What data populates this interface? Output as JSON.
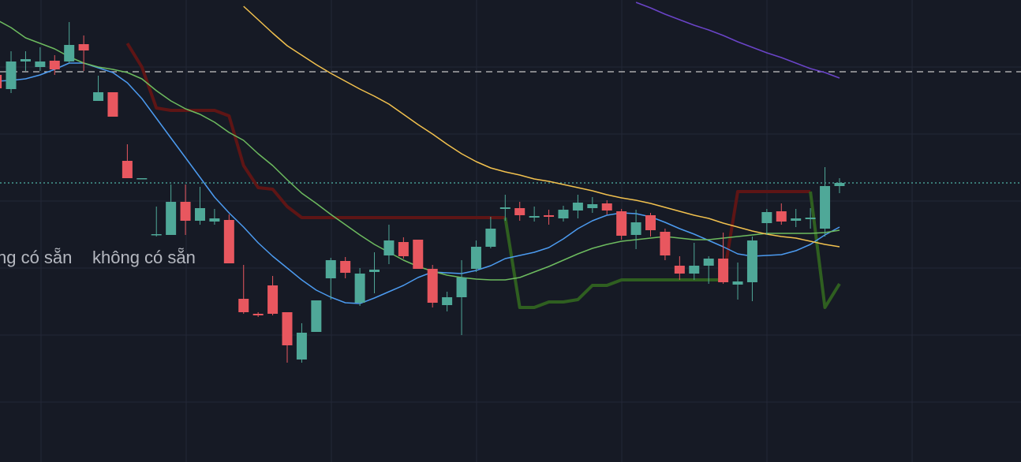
{
  "chart_data": {
    "type": "candlestick",
    "ylim": [
      0,
      586
    ],
    "up_color": "#4fa898",
    "down_color": "#e8575f",
    "open": [
      491,
      473,
      508,
      501,
      509,
      508,
      530,
      458,
      469,
      382,
      359,
      288,
      288,
      330,
      306,
      305,
      307,
      207,
      188,
      224,
      190,
      130,
      165,
      233,
      255,
      202,
      241,
      262,
      279,
      282,
      245,
      199,
      209,
      245,
      273,
      321,
      322,
      310,
      313,
      309,
      319,
      322,
      328,
      318,
      288,
      313,
      292,
      249,
      239,
      249,
      258,
      225,
      228,
      303,
      318,
      306,
      308,
      296,
      350
    ],
    "high": [
      491,
      521,
      521,
      526,
      516,
      558,
      541,
      490,
      469,
      403,
      360,
      324,
      352,
      352,
      349,
      321,
      314,
      250,
      190,
      236,
      190,
      176,
      205,
      259,
      260,
      246,
      266,
      301,
      285,
      282,
      250,
      216,
      256,
      281,
      311,
      339,
      330,
      324,
      320,
      325,
      339,
      336,
      332,
      321,
      320,
      316,
      296,
      261,
      278,
      261,
      291,
      253,
      286,
      321,
      328,
      321,
      322,
      374,
      360
    ],
    "low": [
      468,
      468,
      496,
      496,
      491,
      506,
      496,
      458,
      438,
      360,
      359,
      286,
      288,
      288,
      301,
      301,
      252,
      188,
      184,
      186,
      126,
      126,
      165,
      206,
      233,
      198,
      214,
      251,
      258,
      245,
      196,
      191,
      161,
      241,
      271,
      306,
      306,
      305,
      301,
      305,
      309,
      316,
      314,
      282,
      270,
      286,
      256,
      231,
      231,
      226,
      226,
      206,
      204,
      288,
      301,
      298,
      296,
      286,
      341
    ],
    "close": [
      474,
      508,
      511,
      508,
      498,
      529,
      522,
      469,
      438,
      360,
      360,
      289,
      330,
      306,
      322,
      309,
      252,
      190,
      186,
      188,
      148,
      164,
      205,
      256,
      240,
      239,
      244,
      281,
      261,
      245,
      202,
      209,
      234,
      273,
      296,
      323,
      313,
      312,
      311,
      320,
      329,
      327,
      319,
      287,
      304,
      294,
      262,
      239,
      249,
      258,
      228,
      229,
      281,
      317,
      305,
      309,
      310,
      350,
      354
    ],
    "lines": [
      {
        "color": "#5e1515",
        "width": 4,
        "values": [
          null,
          null,
          null,
          null,
          null,
          null,
          null,
          null,
          null,
          531,
          501,
          449,
          446,
          446,
          446,
          446,
          439,
          376,
          348,
          346,
          324,
          310,
          310,
          310,
          310,
          310,
          310,
          310,
          310,
          310,
          310,
          310,
          310,
          310,
          310,
          310,
          null,
          null,
          null,
          null,
          null,
          null,
          null,
          null,
          null,
          null,
          null,
          null,
          null,
          null,
          231,
          343,
          343,
          343,
          343,
          343,
          343,
          null,
          null
        ]
      },
      {
        "color": "#2f5f20",
        "width": 4,
        "values": [
          null,
          null,
          null,
          null,
          null,
          null,
          null,
          null,
          null,
          null,
          null,
          null,
          null,
          null,
          null,
          null,
          null,
          null,
          null,
          null,
          null,
          null,
          null,
          null,
          null,
          null,
          null,
          null,
          null,
          null,
          null,
          null,
          null,
          null,
          null,
          310,
          196,
          196,
          203,
          203,
          206,
          224,
          224,
          231,
          231,
          231,
          231,
          231,
          231,
          231,
          231,
          null,
          null,
          null,
          null,
          null,
          343,
          196,
          226
        ]
      },
      {
        "color": "#4c9bf0",
        "width": 1.5,
        "values": [
          483,
          484,
          486,
          491,
          498,
          506,
          506,
          500,
          494,
          481,
          461,
          436,
          411,
          386,
          361,
          336,
          316,
          298,
          278,
          261,
          246,
          231,
          218,
          209,
          202,
          201,
          208,
          216,
          224,
          234,
          241,
          240,
          239,
          243,
          249,
          258,
          262,
          266,
          272,
          283,
          296,
          306,
          313,
          316,
          315,
          311,
          304,
          296,
          289,
          281,
          273,
          264,
          261,
          262,
          263,
          268,
          276,
          288,
          298
        ]
      },
      {
        "color": "#6dbb5f",
        "width": 1.5,
        "values": [
          561,
          551,
          538,
          531,
          524,
          514,
          506,
          501,
          498,
          494,
          486,
          471,
          458,
          448,
          441,
          431,
          418,
          408,
          391,
          376,
          358,
          341,
          328,
          314,
          301,
          288,
          276,
          266,
          256,
          248,
          242,
          237,
          234,
          232,
          231,
          231,
          234,
          241,
          248,
          256,
          264,
          271,
          276,
          280,
          282,
          284,
          286,
          284,
          282,
          282,
          284,
          286,
          288,
          290,
          290,
          290,
          290,
          291,
          294
        ]
      },
      {
        "color": "#f2c14e",
        "width": 1.5,
        "values": [
          null,
          null,
          null,
          null,
          null,
          null,
          null,
          null,
          null,
          null,
          null,
          null,
          null,
          null,
          null,
          null,
          null,
          578,
          561,
          544,
          528,
          516,
          504,
          493,
          483,
          473,
          464,
          454,
          441,
          428,
          416,
          403,
          391,
          381,
          373,
          368,
          364,
          359,
          356,
          352,
          348,
          344,
          339,
          335,
          332,
          328,
          323,
          318,
          313,
          309,
          303,
          298,
          293,
          289,
          286,
          284,
          280,
          276,
          273
        ]
      },
      {
        "color": "#6a44c8",
        "width": 1.5,
        "values": [
          null,
          null,
          null,
          null,
          null,
          null,
          null,
          null,
          null,
          null,
          null,
          null,
          null,
          null,
          null,
          null,
          null,
          null,
          null,
          null,
          null,
          null,
          null,
          null,
          null,
          null,
          null,
          null,
          null,
          null,
          null,
          null,
          null,
          null,
          null,
          null,
          null,
          null,
          null,
          null,
          null,
          null,
          null,
          null,
          583,
          576,
          568,
          561,
          554,
          548,
          541,
          533,
          526,
          519,
          513,
          506,
          499,
          494,
          487
        ]
      }
    ],
    "reference_lines": [
      {
        "value": 495,
        "color": "#c8c8c8",
        "dash": "8 6"
      },
      {
        "value": 354,
        "color": "#4fb3a6",
        "dash": "2 3"
      }
    ],
    "annotations": [
      "ng có sẵn",
      "không có sẵn"
    ]
  }
}
